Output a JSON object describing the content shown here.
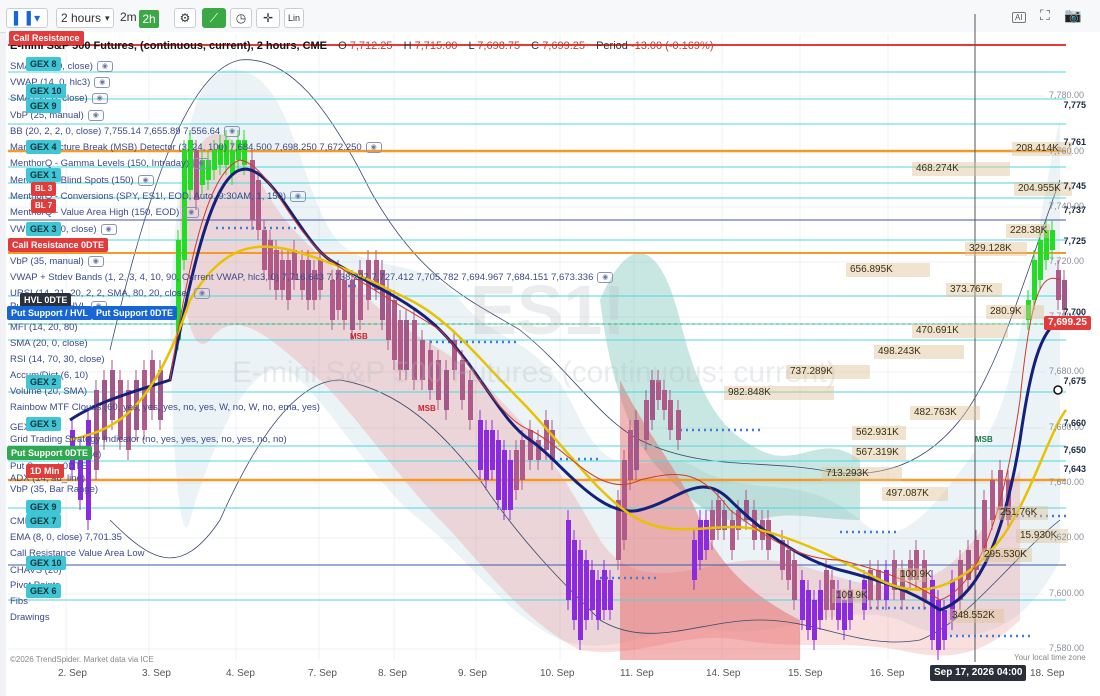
{
  "toolbar": {
    "chart_type_icon": "candles-icon",
    "interval_select": "2 hours",
    "interval_a": "2m",
    "interval_b": "2h",
    "icons": [
      "settings-icon",
      "indicator-icon",
      "clock-icon",
      "crosshair-icon"
    ],
    "lin_label": "Lin",
    "right_icons": [
      "ai-icon",
      "expand-icon",
      "camera-icon"
    ]
  },
  "header": {
    "title": "E-mini S&P 500 Futures, (continuous, current), 2 hours, CME",
    "o_label": "O",
    "o_value": "7,712.25",
    "h_label": "H",
    "h_value": "7,715.00",
    "l_label": "L",
    "l_value": "7,698.75",
    "c_label": "C",
    "c_value": "7,699.25",
    "period_label": "Period",
    "period_value": "-13.00 (-0.169%)"
  },
  "indicators": [
    "SMA (200, 0, close)",
    "VWAP (14, 0, hlc3)",
    "SMA (50, 0, close)",
    "VbP (25, manual)",
    "BB (20, 2, 2, 0, close)  7,755.14  7,655.89  7,556.64",
    "Market Structure Break (MSB) Detector (3, 24, 100)  7,684.500  7,698.250  7,672.250",
    "MenthorQ - Gamma Levels (150, Intraday)",
    "MenthorQ - Blind Spots (150)",
    "MenthorQ - Conversions (SPY, ES1!, EOD, Auto, 9:30AM, 1, 150)",
    "MenthorQ - Value Area High (150, EOD)",
    "VWMA (20, 0, close)",
    "VbP (35, manual)",
    "VWAP + Stdev Bands (1, 2, 3, 4, 10, 90, Current VWAP, hlc3, 0)  7,716.643  7,738.227  7,727.412  7,705.782  7,694.967  7,684.151  7,673.336",
    "URSI (14, 21, 20, 2, 2, SMA, 80, 20, close)",
    "Put Support / HVL",
    "MFI (14, 20, 80)",
    "SMA (20, 0, close)",
    "RSI (14, 70, 30, close)",
    "Accum/Dist (6, 10)",
    "Volume (20, SMA)",
    "Rainbow MTF Clouds (60, yes, yes, yes, no, yes, W, no, W, no, ema, yes)",
    "GEX 5",
    "Grid Trading Strategy Indicator (no, yes, yes, yes, no, yes, no, no)",
    "BB (20, 2, 2, 0, close)",
    "Put Support 0DTE",
    "ADX (14, ad_line)",
    "VbP (35, Bar Range)",
    "CMF (20)",
    "EMA (8, 0, close)  7,701.35",
    "Call Resistance  Value Area Low",
    "CHAVS (20)",
    "Pivot Points",
    "Fibs",
    "Drawings"
  ],
  "gex_tags": [
    "GEX 8",
    "GEX 10",
    "GEX 9",
    "GEX 4",
    "GEX 1",
    "GEX 3",
    "GEX 2",
    "GEX 5",
    "GEX 9",
    "GEX 7",
    "GEX 10",
    "GEX 6"
  ],
  "level_tags": {
    "call_resistance": "Call Resistance",
    "bl3": "BL 3",
    "bl7": "BL 7",
    "call_resistance_0dte": "Call Resistance 0DTE",
    "hvl_0dte": "HVL 0DTE",
    "put_support_hvl": "Put Support / HVL",
    "put_support_0dte": "Put Support 0DTE",
    "put_support_0dte_2": "Put Support 0DTE",
    "one_d_min": "1D Min"
  },
  "watermark": {
    "symbol": "ES1!",
    "name": "E-mini S&P 500 Futures (continuous: current)"
  },
  "volume_labels": [
    "468.274K",
    "208.414K",
    "204.955K",
    "228.38K",
    "329.128K",
    "656.895K",
    "373.767K",
    "280.9K",
    "470.691K",
    "498.243K",
    "737.289K",
    "982.848K",
    "482.763K",
    "562.931K",
    "567.319K",
    "713.293K",
    "497.087K",
    "251.76K",
    "15.930K",
    "295.530K",
    "100.9K",
    "109.9K",
    "348.552K"
  ],
  "price_axis": [
    "7,780.00",
    "7,760.00",
    "7,740.00",
    "7,720.00",
    "7,700.00",
    "7,680.00",
    "7,660.00",
    "7,640.00",
    "7,620.00",
    "7,600.00",
    "7,580.00"
  ],
  "price_tags": [
    "7,775",
    "7,761",
    "7,745",
    "7,737",
    "7,725",
    "7,700",
    "7,675",
    "7,660",
    "7,650",
    "7,643"
  ],
  "current_price": "7,699.25",
  "x_axis": [
    "2. Sep",
    "3. Sep",
    "4. Sep",
    "7. Sep",
    "8. Sep",
    "9. Sep",
    "10. Sep",
    "11. Sep",
    "14. Sep",
    "15. Sep",
    "16. Sep",
    "18. Sep"
  ],
  "cursor_time": "Sep 17, 2026 04:00",
  "msb_labels": [
    "MSB",
    "MSB",
    "MSB"
  ],
  "footer_left": "©2026 TrendSpider. Market data via ICE",
  "footer_right": "Your local time zone",
  "colors": {
    "bull": "#2ec27e",
    "bear": "#a0588a",
    "purple": "#8a2be2",
    "ema_blue": "#14207a",
    "sma_yellow": "#e8c200",
    "red_line": "#e23b3b",
    "orange_line": "#f39a2b",
    "cyan_line": "#4fd6e0"
  }
}
